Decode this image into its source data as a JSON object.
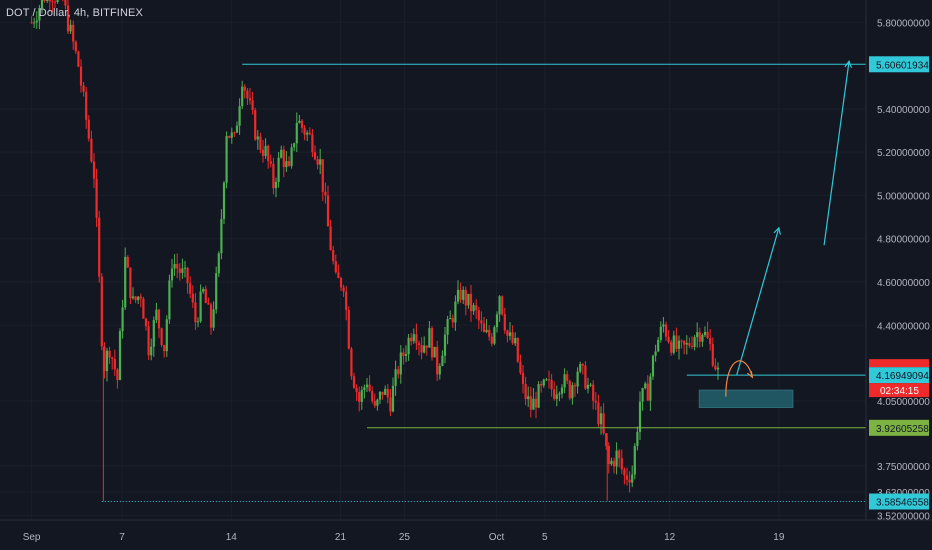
{
  "header": {
    "symbol_title": "DOT / Dollar, 4h, BITFINEX"
  },
  "colors": {
    "background": "#131722",
    "up": "#26a69a",
    "candle_up": "#4caf50",
    "candle_down": "#ef2a2a",
    "cyan": "#31c8d8",
    "green_line": "#7cb342",
    "orange": "#f5883a",
    "axis_text": "#b2b5be"
  },
  "chart_data": {
    "type": "candlestick",
    "title": "DOT / Dollar, 4h, BITFINEX",
    "x_tick_labels": [
      "Sep",
      "7",
      "14",
      "21",
      "25",
      "Oct",
      "5",
      "12",
      "19"
    ],
    "y_tick_labels": [
      "5.80000000",
      "5.40000000",
      "5.20000000",
      "5.00000000",
      "4.80000000",
      "4.60000000",
      "4.40000000",
      "4.05000000",
      "3.75000000",
      "3.63000000",
      "3.52000000"
    ],
    "y_range": [
      3.5,
      5.88
    ],
    "price_labels": [
      {
        "value": 5.60601934,
        "text": "5.60601934",
        "color": "#31c8d8"
      },
      {
        "value": 4.16949094,
        "text": "4.16949094",
        "color": "#31c8d8"
      },
      {
        "value": 3.92605258,
        "text": "3.92605258",
        "color": "#7cb342"
      },
      {
        "value": 3.58546558,
        "text": "3.58546558",
        "color": "#31c8d8"
      }
    ],
    "countdown_label": "02:34:15",
    "horizontal_levels": [
      {
        "value": 5.60601934,
        "from_day": 14.5,
        "style": "solid",
        "color": "#31c8d8"
      },
      {
        "value": 4.16949094,
        "from_day": 43.0,
        "style": "solid",
        "color": "#31c8d8"
      },
      {
        "value": 3.92605258,
        "from_day": 22.5,
        "style": "solid",
        "color": "#7cb342"
      },
      {
        "value": 3.58546558,
        "from_day": 5.5,
        "style": "dotted",
        "color": "#31c8d8"
      }
    ],
    "demand_zone": {
      "from_day": 43.8,
      "to_day": 49.8,
      "top": 4.1,
      "bottom": 4.02
    },
    "projection_arrows": [
      {
        "from": [
          46.2,
          4.17
        ],
        "to": [
          48.9,
          4.85
        ]
      },
      {
        "from": [
          51.8,
          4.77
        ],
        "to": [
          53.4,
          5.62
        ]
      }
    ],
    "orange_curve": {
      "from": [
        45.5,
        4.07
      ],
      "peak": [
        46.3,
        4.23
      ],
      "to": [
        47.2,
        4.16
      ]
    },
    "series": [
      {
        "name": "DOT / Dollar",
        "closes_by_day": [
          [
            1,
            5.8
          ],
          [
            2,
            5.95
          ],
          [
            3,
            5.9
          ],
          [
            4,
            5.6
          ],
          [
            5,
            5.1
          ],
          [
            5.6,
            4.2
          ],
          [
            6,
            4.3
          ],
          [
            6.5,
            4.15
          ],
          [
            7,
            4.7
          ],
          [
            7.5,
            4.5
          ],
          [
            8,
            4.55
          ],
          [
            8.5,
            4.3
          ],
          [
            9,
            4.45
          ],
          [
            9.5,
            4.3
          ],
          [
            10,
            4.7
          ],
          [
            10.5,
            4.65
          ],
          [
            11,
            4.6
          ],
          [
            11.5,
            4.42
          ],
          [
            12,
            4.55
          ],
          [
            12.5,
            4.4
          ],
          [
            13,
            4.7
          ],
          [
            13.5,
            5.3
          ],
          [
            14,
            5.25
          ],
          [
            14.5,
            5.55
          ],
          [
            15,
            5.4
          ],
          [
            15.5,
            5.25
          ],
          [
            16,
            5.2
          ],
          [
            16.5,
            5.05
          ],
          [
            17,
            5.2
          ],
          [
            17.5,
            5.1
          ],
          [
            18,
            5.35
          ],
          [
            18.5,
            5.3
          ],
          [
            19,
            5.25
          ],
          [
            19.5,
            5.15
          ],
          [
            20,
            4.85
          ],
          [
            20.5,
            4.6
          ],
          [
            21,
            4.6
          ],
          [
            21.5,
            4.2
          ],
          [
            22,
            4.05
          ],
          [
            22.5,
            4.15
          ],
          [
            23,
            4.0
          ],
          [
            23.5,
            4.1
          ],
          [
            24,
            4.05
          ],
          [
            24.5,
            4.2
          ],
          [
            25,
            4.3
          ],
          [
            25.5,
            4.4
          ],
          [
            26,
            4.3
          ],
          [
            26.5,
            4.35
          ],
          [
            27,
            4.2
          ],
          [
            27.5,
            4.35
          ],
          [
            28,
            4.45
          ],
          [
            28.5,
            4.55
          ],
          [
            29,
            4.5
          ],
          [
            29.5,
            4.45
          ],
          [
            30,
            4.35
          ],
          [
            30.5,
            4.35
          ],
          [
            31,
            4.55
          ],
          [
            31.5,
            4.35
          ],
          [
            32,
            4.3
          ],
          [
            32.5,
            4.1
          ],
          [
            33,
            4.02
          ],
          [
            33.5,
            4.08
          ],
          [
            34,
            4.12
          ],
          [
            34.5,
            4.1
          ],
          [
            35,
            4.15
          ],
          [
            35.5,
            4.1
          ],
          [
            36,
            4.2
          ],
          [
            36.5,
            4.15
          ],
          [
            37,
            4.05
          ],
          [
            37.5,
            3.95
          ],
          [
            38,
            3.75
          ],
          [
            38.5,
            3.8
          ],
          [
            39,
            3.7
          ],
          [
            39.5,
            3.72
          ],
          [
            40,
            4.05
          ],
          [
            40.5,
            4.1
          ],
          [
            41,
            4.3
          ],
          [
            41.5,
            4.4
          ],
          [
            42,
            4.32
          ],
          [
            42.5,
            4.28
          ],
          [
            43,
            4.3
          ],
          [
            43.5,
            4.36
          ],
          [
            44,
            4.38
          ],
          [
            44.5,
            4.3
          ],
          [
            45,
            4.18
          ]
        ]
      }
    ]
  }
}
